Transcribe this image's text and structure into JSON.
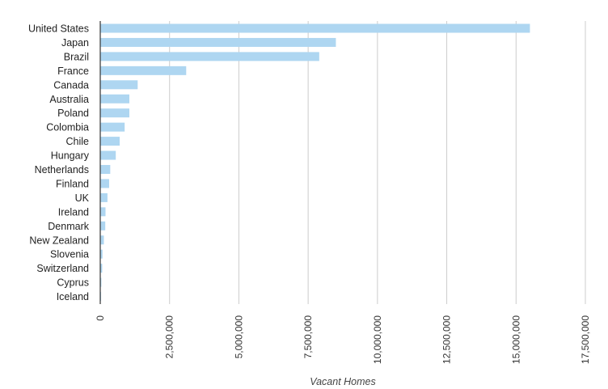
{
  "chart_data": {
    "type": "bar",
    "orientation": "horizontal",
    "title": "",
    "xlabel": "Vacant Homes",
    "ylabel": "",
    "xlim": [
      0,
      17500000
    ],
    "grid": true,
    "legend": "none",
    "bar_color": "#aed6f1",
    "x_ticks": [
      0,
      2500000,
      5000000,
      7500000,
      10000000,
      12500000,
      15000000,
      17500000
    ],
    "x_tick_labels": [
      "0",
      "2,500,000",
      "5,000,000",
      "7,500,000",
      "10,000,000",
      "12,500,000",
      "15,000,000",
      "17,500,000"
    ],
    "categories": [
      "United States",
      "Japan",
      "Brazil",
      "France",
      "Canada",
      "Australia",
      "Poland",
      "Colombia",
      "Chile",
      "Hungary",
      "Netherlands",
      "Finland",
      "UK",
      "Ireland",
      "Denmark",
      "New Zealand",
      "Slovenia",
      "Switzerland",
      "Cyprus",
      "Iceland"
    ],
    "values": [
      15500000,
      8500000,
      7900000,
      3100000,
      1350000,
      1050000,
      1050000,
      880000,
      700000,
      560000,
      360000,
      320000,
      260000,
      190000,
      180000,
      130000,
      80000,
      70000,
      40000,
      20000
    ]
  }
}
